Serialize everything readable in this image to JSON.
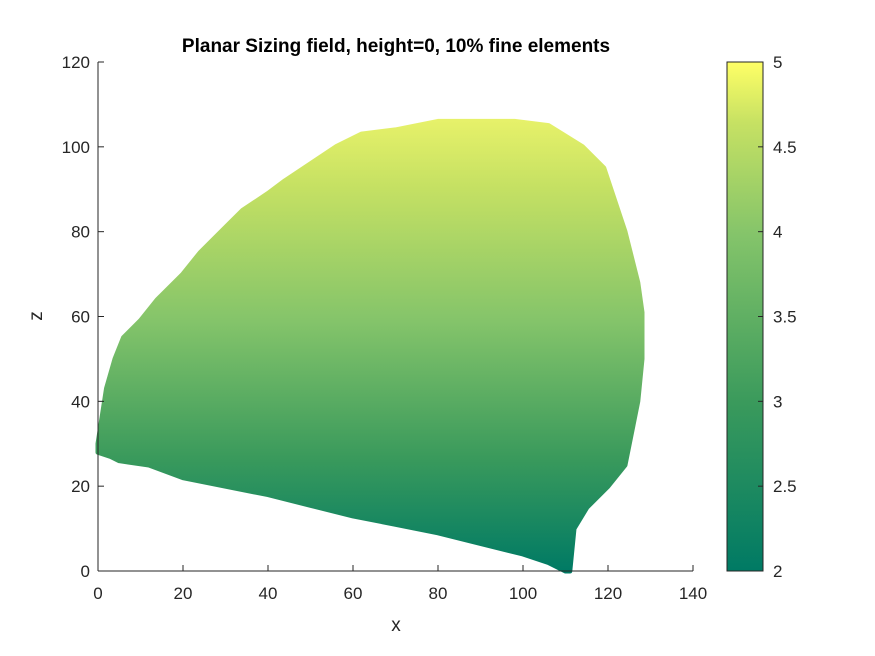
{
  "chart_data": {
    "type": "scatter",
    "title": "Planar Sizing field, height=0, 10% fine elements",
    "xlabel": "x",
    "ylabel": "z",
    "xlim": [
      0,
      140
    ],
    "ylim": [
      0,
      120
    ],
    "xticks": [
      "0",
      "20",
      "40",
      "60",
      "80",
      "100",
      "120",
      "140"
    ],
    "yticks": [
      "0",
      "20",
      "40",
      "60",
      "80",
      "100",
      "120"
    ],
    "grid": false,
    "legend": "none",
    "colorbar": {
      "position": "right",
      "clim": [
        2,
        5
      ],
      "ticks": [
        "2",
        "2.5",
        "3",
        "3.5",
        "4",
        "4.5",
        "5"
      ],
      "colormap": [
        "#007a64",
        "#3a9a5c",
        "#84c46a",
        "#c6e163",
        "#ffff66"
      ]
    },
    "region_boundary": {
      "x": [
        0,
        3,
        5,
        12,
        20,
        30,
        40,
        50,
        60,
        70,
        80,
        90,
        100,
        106,
        110,
        111,
        112,
        115,
        120,
        124,
        127,
        128,
        128,
        127,
        124,
        119,
        114,
        106,
        98,
        90,
        80,
        70,
        62,
        56,
        50,
        44,
        40,
        34,
        30,
        24,
        20,
        14,
        10,
        6,
        4,
        2,
        0
      ],
      "y": [
        28,
        27,
        26,
        25,
        22,
        20,
        18,
        15.5,
        13,
        11,
        9,
        6.5,
        4,
        2,
        0,
        0,
        10,
        15,
        20,
        25,
        40,
        50,
        61,
        68,
        80,
        95,
        100,
        105,
        106,
        106,
        106,
        104,
        103,
        100,
        96,
        92,
        89,
        85,
        81,
        75,
        70,
        64,
        59,
        55,
        50,
        43,
        30
      ]
    },
    "color_rule": "value = 2 + 3 * z / 106"
  }
}
